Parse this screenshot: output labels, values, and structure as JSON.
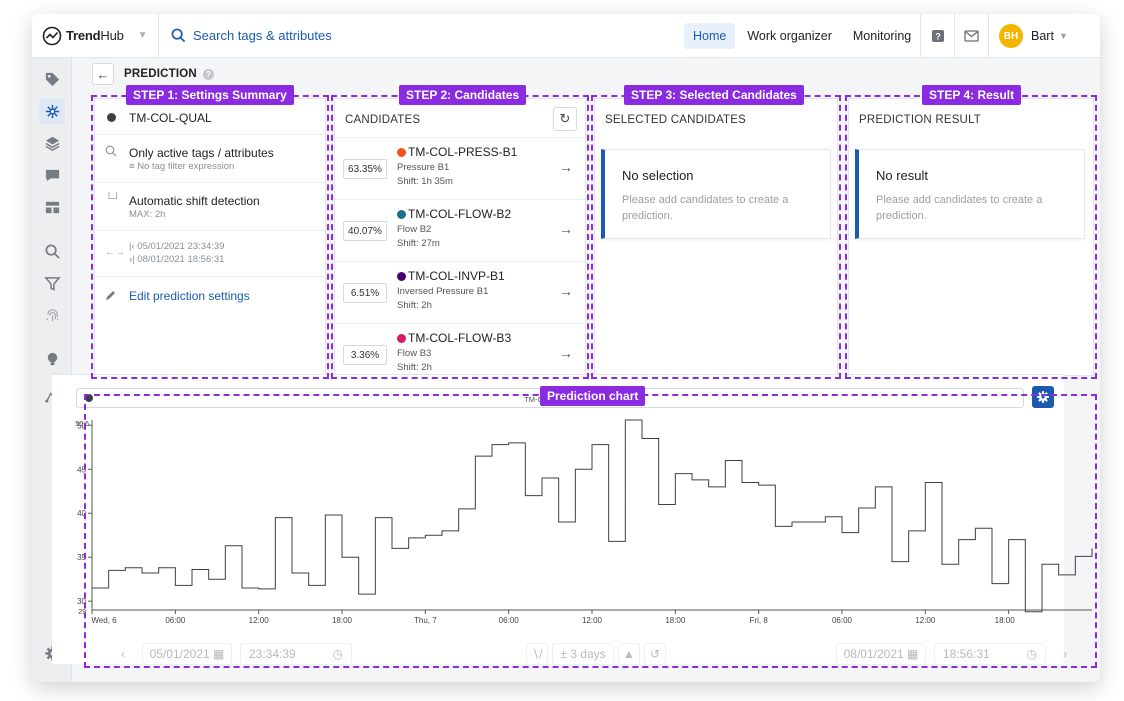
{
  "app": {
    "brand_bold": "Trend",
    "brand_light": "Hub",
    "search_placeholder": "Search tags & attributes"
  },
  "nav": {
    "items": [
      {
        "label": "Home",
        "active": true
      },
      {
        "label": "Work organizer",
        "active": false
      },
      {
        "label": "Monitoring",
        "active": false
      }
    ]
  },
  "user": {
    "initials": "BH",
    "name": "Bart"
  },
  "sidebar": {
    "icons": [
      "tag-icon",
      "prediction-icon",
      "layers-icon",
      "comment-icon",
      "dashboard-icon",
      "search-icon",
      "filter-icon",
      "fingerprint-icon",
      "lightbulb-icon",
      "graph-icon",
      "settings-icon"
    ]
  },
  "page": {
    "title": "PREDICTION"
  },
  "steps": {
    "step1": "STEP 1: Settings Summary",
    "step2": "STEP 2: Candidates",
    "step3": "STEP 3: Selected Candidates",
    "step4": "STEP 4: Result",
    "chart": "Prediction chart"
  },
  "settings": {
    "target": "TM-COL-QUAL",
    "filter_title": "Only active tags / attributes",
    "filter_sub": "No tag filter expression",
    "shift_title": "Automatic shift detection",
    "shift_sub": "MAX: 2h",
    "start": "05/01/2021 23:34:39",
    "end": "08/01/2021 18:56:31",
    "edit_label": "Edit prediction settings"
  },
  "candidates": {
    "header": "CANDIDATES",
    "items": [
      {
        "pct": "63.35%",
        "name": "TM-COL-PRESS-B1",
        "desc": "Pressure B1",
        "shift": "Shift: 1h 35m",
        "color": "#f4511e"
      },
      {
        "pct": "40.07%",
        "name": "TM-COL-FLOW-B2",
        "desc": "Flow B2",
        "shift": "Shift: 27m",
        "color": "#1f6f8b"
      },
      {
        "pct": "6.51%",
        "name": "TM-COL-INVP-B1",
        "desc": "Inversed Pressure B1",
        "shift": "Shift: 2h",
        "color": "#4a0072"
      },
      {
        "pct": "3.36%",
        "name": "TM-COL-FLOW-B3",
        "desc": "Flow B3",
        "shift": "Shift: 2h",
        "color": "#d81b60"
      }
    ]
  },
  "selected": {
    "header": "SELECTED CANDIDATES",
    "empty_title": "No selection",
    "empty_desc": "Please add candidates to create a prediction."
  },
  "result": {
    "header": "PREDICTION RESULT",
    "empty_title": "No result",
    "empty_desc": "Please add candidates to create a prediction."
  },
  "chart_data": {
    "type": "line",
    "series": [
      {
        "name": "TM-COL-QUAL",
        "x": [
          0,
          1.2,
          2.4,
          3.6,
          4.8,
          6,
          7.2,
          8.4,
          9.6,
          10.8,
          12,
          13.2,
          14.4,
          15.6,
          16.8,
          18,
          19.2,
          20.4,
          21.6,
          22.8,
          24,
          25.2,
          26.4,
          27.6,
          28.8,
          30,
          31.2,
          32.4,
          33.6,
          34.8,
          36,
          37.2,
          38.4,
          39.6,
          40.8,
          42,
          43.2,
          44.4,
          45.6,
          46.8,
          48,
          49.2,
          50.4,
          51.6,
          52.8,
          54,
          55.2,
          56.4,
          57.6,
          58.8,
          60,
          61.2,
          62.4,
          63.6,
          64.8,
          66,
          67.2,
          68.4,
          69.6,
          70.8,
          72
        ],
        "y": [
          31.5,
          33.5,
          33.8,
          33.2,
          33.8,
          31.8,
          33.6,
          32.5,
          36.3,
          31.5,
          31.4,
          39.5,
          33.2,
          31.8,
          39.8,
          35.0,
          30.8,
          39.5,
          36.0,
          37.2,
          37.5,
          38.0,
          40.5,
          46.5,
          47.8,
          48.0,
          42.0,
          44.0,
          39.0,
          45.0,
          47.8,
          36.8,
          50.6,
          48.5,
          41.0,
          44.5,
          43.8,
          43.0,
          46.0,
          43.5,
          43.2,
          38.5,
          39.0,
          39.0,
          39.6,
          37.8,
          40.6,
          43.0,
          34.5,
          38.0,
          43.5,
          34.2,
          37.0,
          38.3,
          32.0,
          37.0,
          28.8,
          34.2,
          33.0,
          35.1,
          36.0
        ],
        "color": "#3b4048"
      }
    ],
    "xlabels": [
      "Wed, 6",
      "06:00",
      "12:00",
      "18:00",
      "Thu, 7",
      "06:00",
      "12:00",
      "18:00",
      "Fri, 8",
      "06:00",
      "12:00",
      "18:00"
    ],
    "yticks": [
      30,
      35,
      40,
      45,
      50
    ],
    "ylim": [
      29,
      50.6
    ],
    "ymin_label": "29",
    "ymax_label": "50.6",
    "grid": false
  },
  "timebar": {
    "start_date": "05/01/2021",
    "start_time": "23:34:39",
    "range": "± 3 days",
    "end_date": "08/01/2021",
    "end_time": "18:56:31"
  }
}
